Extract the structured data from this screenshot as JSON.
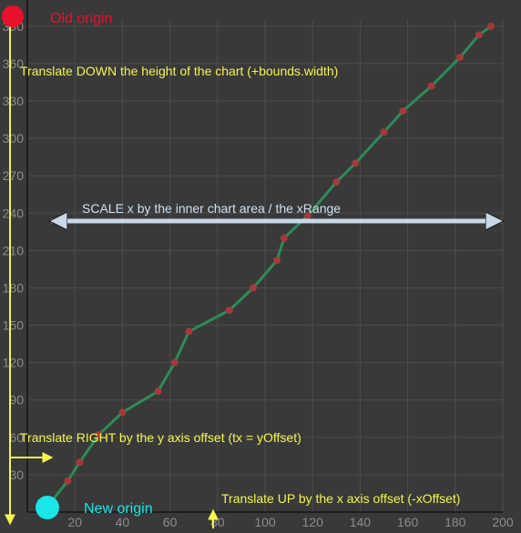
{
  "chart_data": {
    "type": "line",
    "x": [
      10,
      17,
      22,
      30,
      40,
      55,
      62,
      68,
      85,
      95,
      105,
      108,
      118,
      130,
      138,
      150,
      158,
      170,
      182,
      190,
      195
    ],
    "y": [
      8,
      25,
      40,
      62,
      80,
      97,
      120,
      145,
      162,
      180,
      202,
      220,
      238,
      265,
      280,
      305,
      322,
      342,
      365,
      383,
      390
    ],
    "xlim": [
      0,
      200
    ],
    "ylim": [
      0,
      395
    ],
    "xticks": [
      20,
      40,
      60,
      80,
      100,
      120,
      140,
      160,
      180,
      200
    ],
    "yticks": [
      30,
      60,
      90,
      120,
      150,
      180,
      210,
      240,
      270,
      300,
      330,
      360,
      390
    ],
    "grid": true,
    "colors": {
      "background": "#393939",
      "grid": "#4d4d4d",
      "axis": "#1e1e1e",
      "tick_label": "#8c8c8c",
      "line": "#2e8b57",
      "marker": "#a33a3a"
    }
  },
  "annotations": {
    "old_origin": "Old origin",
    "translate_down": "Translate DOWN  the height of the chart (+bounds.width)",
    "scale_x": "SCALE x by the inner chart area / the xRange",
    "translate_right": "Translate RIGHT by the y axis offset (tx = yOffset)",
    "new_origin": "New origin",
    "translate_up": "Translate UP by the x axis offset (-xOffset)"
  },
  "annotation_colors": {
    "old_origin": "#e8102a",
    "new_origin": "#19e6e8",
    "yellow": "#f5f54e",
    "scale_arrow": "#c8d8e6"
  }
}
